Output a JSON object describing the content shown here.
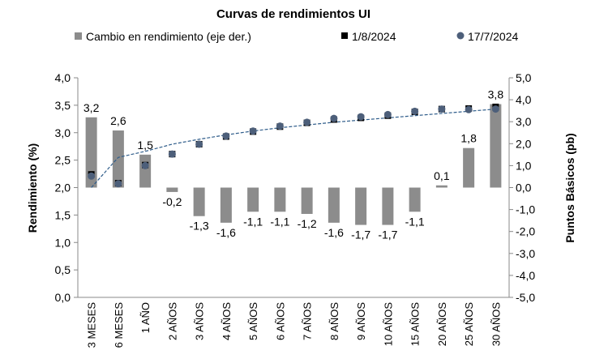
{
  "chart_data": {
    "type": "bar+line",
    "title": "Curvas de rendimientos UI",
    "categories": [
      "3 MESES",
      "6 MESES",
      "1 AÑO",
      "2 AÑOS",
      "3 AÑOS",
      "4 AÑOS",
      "5 AÑOS",
      "6 AÑOS",
      "7 AÑOS",
      "8 AÑOS",
      "9 AÑOS",
      "10 AÑOS",
      "15 AÑOS",
      "20 AÑOS",
      "25 AÑOS",
      "30 AÑOS"
    ],
    "ylabel": "Rendimiento (%)",
    "y2label": "Puntos Básicos (pb)",
    "ylim": [
      0,
      4
    ],
    "y2lim": [
      -5,
      5
    ],
    "yticks": [
      "0,0",
      "0,5",
      "1,0",
      "1,5",
      "2,0",
      "2,5",
      "3,0",
      "3,5",
      "4,0"
    ],
    "y2ticks": [
      "-5,0",
      "-4,0",
      "-3,0",
      "-2,0",
      "-1,0",
      "0,0",
      "1,0",
      "2,0",
      "3,0",
      "4,0",
      "5,0"
    ],
    "legend_position": "top",
    "series": [
      {
        "name": "Cambio en rendimiento (eje der.)",
        "type": "bar",
        "axis": "right",
        "color": "#8c8c8c",
        "values": [
          3.2,
          2.6,
          1.5,
          -0.2,
          -1.3,
          -1.6,
          -1.1,
          -1.1,
          -1.2,
          -1.6,
          -1.7,
          -1.7,
          -1.1,
          0.1,
          1.8,
          3.8
        ],
        "labels": [
          "3,2",
          "2,6",
          "1,5",
          "-0,2",
          "-1,3",
          "-1,6",
          "-1,1",
          "-1,1",
          "-1,2",
          "-1,6",
          "-1,7",
          "-1,7",
          "-1,1",
          "0,1",
          "1,8",
          "3,8"
        ]
      },
      {
        "name": "1/8/2024",
        "type": "scatter",
        "axis": "left",
        "marker": "square",
        "color": "#000000",
        "values": [
          2.24,
          2.08,
          2.41,
          2.61,
          2.79,
          2.93,
          3.02,
          3.11,
          3.18,
          3.24,
          3.27,
          3.31,
          3.38,
          3.43,
          3.44,
          3.47
        ]
      },
      {
        "name": "17/7/2024",
        "type": "scatter",
        "axis": "left",
        "marker": "circle",
        "color": "#4d5f7a",
        "values": [
          2.21,
          2.07,
          2.4,
          2.61,
          2.79,
          2.94,
          3.03,
          3.12,
          3.19,
          3.26,
          3.29,
          3.33,
          3.39,
          3.43,
          3.42,
          3.43
        ]
      }
    ],
    "trendline": {
      "color": "#2e5c8a",
      "values": [
        2.0,
        2.55,
        2.66,
        2.79,
        2.88,
        2.96,
        3.03,
        3.09,
        3.14,
        3.19,
        3.23,
        3.27,
        3.31,
        3.35,
        3.39,
        3.43
      ]
    }
  }
}
